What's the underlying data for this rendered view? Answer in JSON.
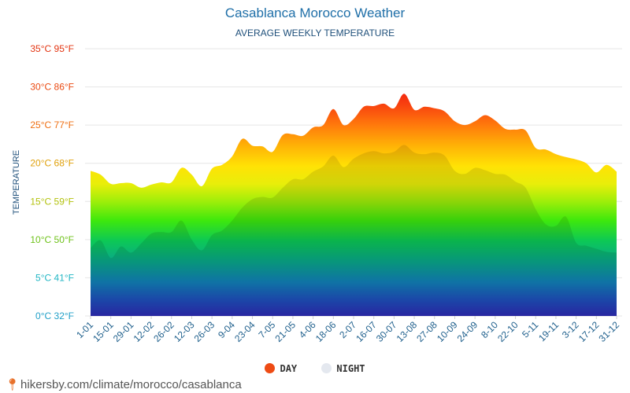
{
  "title": "Casablanca Morocco Weather",
  "subtitle": "AVERAGE WEEKLY TEMPERATURE",
  "legend": [
    {
      "label": "DAY",
      "color": "#ee4b14"
    },
    {
      "label": "NIGHT",
      "color": "#e4e8ef"
    }
  ],
  "footer": {
    "url": "hikersby.com/climate/morocco/casablanca"
  },
  "chart_data": {
    "type": "area",
    "title": "Casablanca Morocco Weather",
    "subtitle": "AVERAGE WEEKLY TEMPERATURE",
    "xlabel": "",
    "ylabel": "TEMPERATURE",
    "ylim": [
      0,
      35
    ],
    "y_ticks": [
      {
        "value": 0,
        "label": "0°C 32°F",
        "color": "#21a0c8"
      },
      {
        "value": 5,
        "label": "5°C 41°F",
        "color": "#21b6c4"
      },
      {
        "value": 10,
        "label": "10°C 50°F",
        "color": "#6fc21b"
      },
      {
        "value": 15,
        "label": "15°C 59°F",
        "color": "#b3c20e"
      },
      {
        "value": 20,
        "label": "20°C 68°F",
        "color": "#e0a10c"
      },
      {
        "value": 25,
        "label": "25°C 77°F",
        "color": "#ef6f12"
      },
      {
        "value": 30,
        "label": "30°C 86°F",
        "color": "#ea4a12"
      },
      {
        "value": 35,
        "label": "35°C 95°F",
        "color": "#e33512"
      }
    ],
    "x_tick_labels": [
      "1-01",
      "15-01",
      "29-01",
      "12-02",
      "26-02",
      "12-03",
      "26-03",
      "9-04",
      "23-04",
      "7-05",
      "21-05",
      "4-06",
      "18-06",
      "2-07",
      "16-07",
      "30-07",
      "13-08",
      "27-08",
      "10-09",
      "24-09",
      "8-10",
      "22-10",
      "5-11",
      "19-11",
      "3-12",
      "17-12",
      "31-12"
    ],
    "series": [
      {
        "name": "DAY",
        "values": [
          19,
          18.5,
          17.3,
          17.4,
          17.4,
          16.8,
          17.2,
          17.5,
          17.5,
          19.4,
          18.5,
          17,
          19.3,
          19.8,
          20.9,
          23.2,
          22.3,
          22.2,
          21.5,
          23.7,
          23.8,
          23.6,
          24.7,
          25,
          27.1,
          25,
          25.8,
          27.4,
          27.5,
          27.8,
          27.2,
          29.1,
          27,
          27.4,
          27.2,
          26.8,
          25.5,
          25,
          25.5,
          26.3,
          25.6,
          24.5,
          24.4,
          24.3,
          22,
          21.8,
          21.2,
          20.8,
          20.5,
          20,
          18.8,
          19.8,
          18.9
        ]
      },
      {
        "name": "NIGHT",
        "values": [
          8.9,
          9.9,
          7.6,
          9.1,
          8.3,
          9.5,
          10.8,
          11,
          11,
          12.5,
          10,
          8.6,
          10.6,
          11.2,
          12.5,
          14.2,
          15.3,
          15.6,
          15.5,
          16.8,
          17.9,
          17.9,
          18.9,
          19.6,
          21,
          19.5,
          20.6,
          21.3,
          21.6,
          21.3,
          21.5,
          22.4,
          21.4,
          21.2,
          21.4,
          21,
          19,
          18.6,
          19.4,
          19.1,
          18.6,
          18.5,
          17.6,
          16.8,
          14,
          12,
          11.8,
          13,
          9.6,
          9.2,
          8.8,
          8.4,
          8.3
        ]
      }
    ]
  }
}
